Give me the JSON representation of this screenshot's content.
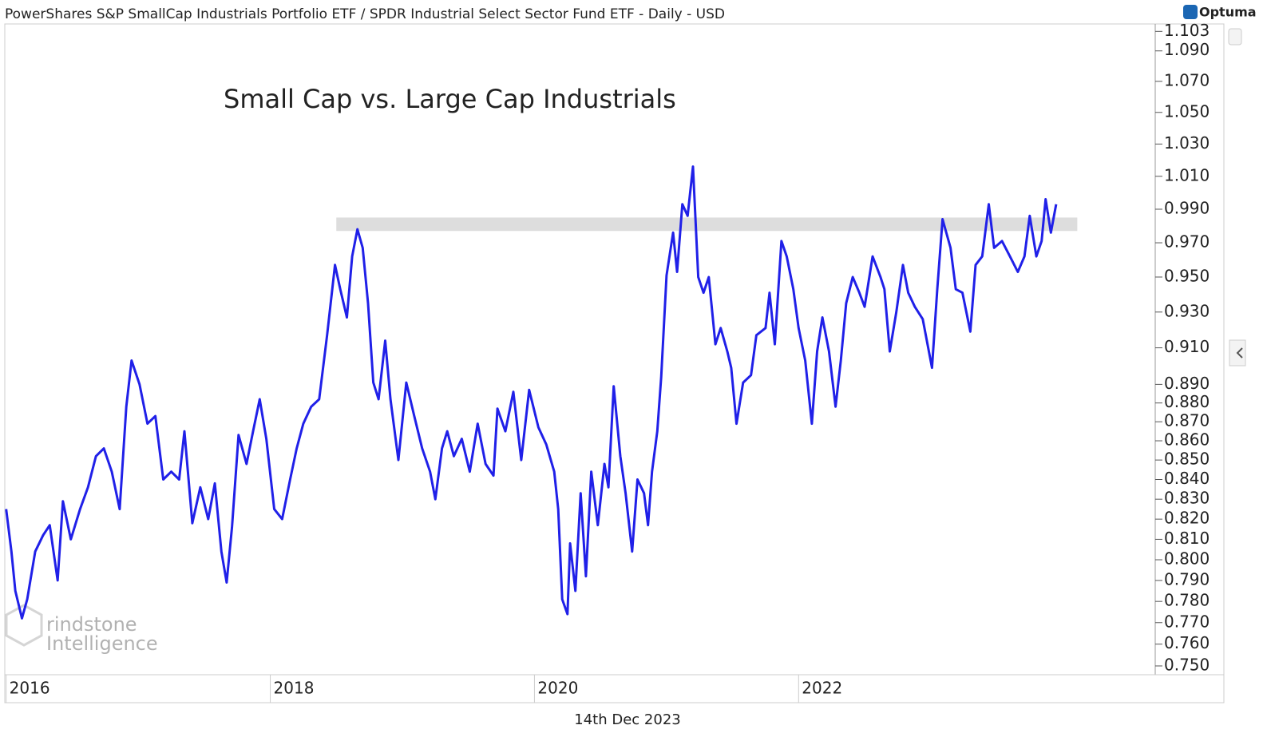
{
  "header": {
    "title": "PowerShares S&P SmallCap Industrials Portfolio ETF / SPDR Industrial Select Sector Fund ETF - Daily - USD",
    "brand": "Optuma",
    "date": "14th Dec 2023",
    "watermark": [
      "rindstone",
      "Intelligence"
    ]
  },
  "chart_data": {
    "type": "line",
    "title": "Small Cap vs. Large Cap Industrials",
    "color": "#2020e8",
    "log_scale": true,
    "grid": true,
    "x": [
      2016.0,
      2016.04,
      2016.07,
      2016.12,
      2016.16,
      2016.22,
      2016.28,
      2016.33,
      2016.39,
      2016.43,
      2016.49,
      2016.56,
      2016.62,
      2016.68,
      2016.74,
      2016.8,
      2016.86,
      2016.91,
      2016.95,
      2017.01,
      2017.07,
      2017.13,
      2017.19,
      2017.25,
      2017.31,
      2017.35,
      2017.41,
      2017.47,
      2017.53,
      2017.58,
      2017.63,
      2017.67,
      2017.71,
      2017.76,
      2017.82,
      2017.87,
      2017.92,
      2017.97,
      2018.03,
      2018.09,
      2018.15,
      2018.2,
      2018.25,
      2018.31,
      2018.37,
      2018.43,
      2018.49,
      2018.53,
      2018.58,
      2018.62,
      2018.66,
      2018.7,
      2018.74,
      2018.78,
      2018.82,
      2018.87,
      2018.91,
      2018.97,
      2019.03,
      2019.09,
      2019.15,
      2019.21,
      2019.25,
      2019.3,
      2019.34,
      2019.39,
      2019.45,
      2019.51,
      2019.57,
      2019.63,
      2019.69,
      2019.72,
      2019.78,
      2019.84,
      2019.9,
      2019.96,
      2020.03,
      2020.09,
      2020.15,
      2020.18,
      2020.21,
      2020.25,
      2020.27,
      2020.31,
      2020.35,
      2020.39,
      2020.43,
      2020.48,
      2020.53,
      2020.56,
      2020.6,
      2020.65,
      2020.69,
      2020.74,
      2020.78,
      2020.83,
      2020.86,
      2020.89,
      2020.93,
      2020.96,
      2021.0,
      2021.05,
      2021.08,
      2021.12,
      2021.16,
      2021.2,
      2021.24,
      2021.28,
      2021.32,
      2021.37,
      2021.41,
      2021.46,
      2021.49,
      2021.53,
      2021.58,
      2021.64,
      2021.68,
      2021.75,
      2021.78,
      2021.82,
      2021.87,
      2021.91,
      2021.96,
      2022.0,
      2022.05,
      2022.1,
      2022.14,
      2022.18,
      2022.23,
      2022.28,
      2022.32,
      2022.36,
      2022.41,
      2022.46,
      2022.5,
      2022.56,
      2022.62,
      2022.65,
      2022.69,
      2022.74,
      2022.79,
      2022.83,
      2022.88,
      2022.94,
      2023.01,
      2023.05,
      2023.09,
      2023.15,
      2023.19,
      2023.24,
      2023.3,
      2023.34,
      2023.39,
      2023.44,
      2023.48,
      2023.54,
      2023.6,
      2023.66,
      2023.71,
      2023.75,
      2023.8,
      2023.84,
      2023.87,
      2023.91,
      2023.95
    ],
    "values": [
      0.825,
      0.804,
      0.785,
      0.772,
      0.781,
      0.804,
      0.812,
      0.817,
      0.79,
      0.829,
      0.81,
      0.825,
      0.836,
      0.852,
      0.856,
      0.844,
      0.825,
      0.878,
      0.903,
      0.89,
      0.869,
      0.873,
      0.84,
      0.844,
      0.84,
      0.865,
      0.818,
      0.836,
      0.82,
      0.838,
      0.804,
      0.789,
      0.816,
      0.863,
      0.848,
      0.865,
      0.882,
      0.861,
      0.825,
      0.82,
      0.84,
      0.856,
      0.869,
      0.878,
      0.882,
      0.917,
      0.957,
      0.943,
      0.927,
      0.962,
      0.978,
      0.967,
      0.935,
      0.891,
      0.882,
      0.914,
      0.882,
      0.85,
      0.891,
      0.873,
      0.856,
      0.844,
      0.83,
      0.856,
      0.865,
      0.852,
      0.861,
      0.844,
      0.869,
      0.848,
      0.842,
      0.877,
      0.865,
      0.886,
      0.85,
      0.887,
      0.867,
      0.858,
      0.844,
      0.825,
      0.781,
      0.774,
      0.808,
      0.785,
      0.833,
      0.792,
      0.844,
      0.817,
      0.848,
      0.836,
      0.889,
      0.852,
      0.833,
      0.804,
      0.84,
      0.833,
      0.817,
      0.844,
      0.865,
      0.894,
      0.951,
      0.976,
      0.953,
      0.993,
      0.986,
      1.016,
      0.95,
      0.941,
      0.95,
      0.912,
      0.921,
      0.908,
      0.899,
      0.869,
      0.891,
      0.895,
      0.917,
      0.921,
      0.941,
      0.912,
      0.971,
      0.962,
      0.943,
      0.921,
      0.903,
      0.869,
      0.908,
      0.927,
      0.908,
      0.878,
      0.903,
      0.935,
      0.95,
      0.941,
      0.933,
      0.962,
      0.95,
      0.943,
      0.908,
      0.93,
      0.957,
      0.941,
      0.933,
      0.926,
      0.899,
      0.943,
      0.984,
      0.967,
      0.943,
      0.941,
      0.919,
      0.957,
      0.962,
      0.993,
      0.967,
      0.971,
      0.962,
      0.953,
      0.962,
      0.986,
      0.962,
      0.971,
      0.996,
      0.976,
      0.993
    ],
    "band": {
      "x": [
        2018.5,
        2024.11
      ],
      "y": [
        0.977,
        0.985
      ],
      "color": "#dddddd"
    },
    "xlim": [
      2015.99,
      2024.7
    ],
    "xticks": [
      2016,
      2018,
      2020,
      2022
    ],
    "ylim": [
      0.746,
      1.108
    ],
    "yticks": [
      {
        "value": 0.75,
        "label": "0.750"
      },
      {
        "value": 0.76,
        "label": "0.760"
      },
      {
        "value": 0.77,
        "label": "0.770"
      },
      {
        "value": 0.78,
        "label": "0.780"
      },
      {
        "value": 0.79,
        "label": "0.790"
      },
      {
        "value": 0.8,
        "label": "0.800"
      },
      {
        "value": 0.81,
        "label": "0.810"
      },
      {
        "value": 0.82,
        "label": "0.820"
      },
      {
        "value": 0.83,
        "label": "0.830"
      },
      {
        "value": 0.84,
        "label": "0.840"
      },
      {
        "value": 0.85,
        "label": "0.850"
      },
      {
        "value": 0.86,
        "label": "0.860"
      },
      {
        "value": 0.87,
        "label": "0.870"
      },
      {
        "value": 0.88,
        "label": "0.880"
      },
      {
        "value": 0.89,
        "label": "0.890"
      },
      {
        "value": 0.91,
        "label": "0.910"
      },
      {
        "value": 0.93,
        "label": "0.930"
      },
      {
        "value": 0.95,
        "label": "0.950"
      },
      {
        "value": 0.97,
        "label": "0.970"
      },
      {
        "value": 0.99,
        "label": "0.990"
      },
      {
        "value": 1.01,
        "label": "1.010"
      },
      {
        "value": 1.03,
        "label": "1.030"
      },
      {
        "value": 1.05,
        "label": "1.050"
      },
      {
        "value": 1.07,
        "label": "1.070"
      },
      {
        "value": 1.09,
        "label": "1.090"
      },
      1.103
    ]
  }
}
